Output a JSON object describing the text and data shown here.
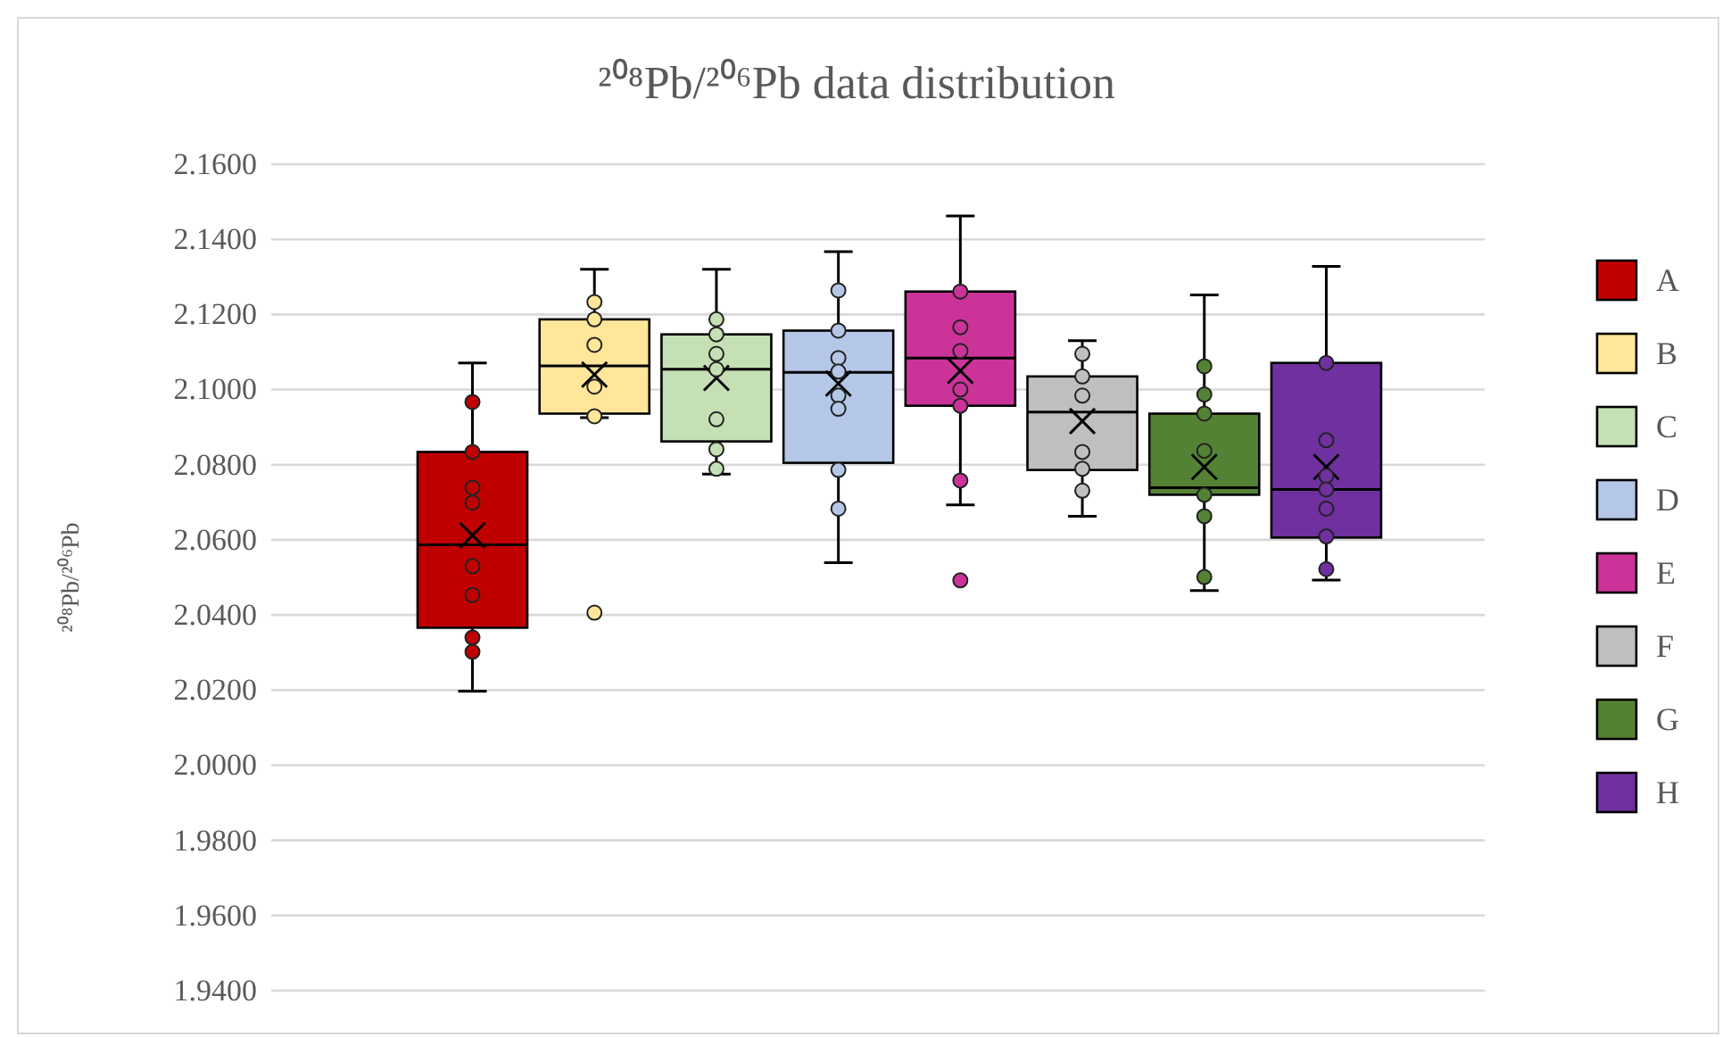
{
  "chart_data": {
    "type": "box",
    "title": "²⁰⁸Pb/²⁰⁶Pb data distribution",
    "ylabel": "²⁰⁸Pb/²⁰⁶Pb",
    "categories": [
      null
    ],
    "series": [
      {
        "name": "A",
        "color": "#c00000",
        "boxes": [
          {
            "low": 2.0197,
            "q1": 2.0366,
            "median": 2.0587,
            "q3": 2.0834,
            "high": 2.1071,
            "mean": 2.0612
          }
        ]
      },
      {
        "name": "B",
        "color": "#ffe699",
        "boxes": [
          {
            "low": 2.0925,
            "q1": 2.0936,
            "median": 2.1063,
            "q3": 2.1187,
            "high": 2.132,
            "mean": 2.104,
            "outliers": [
              2.0406
            ]
          }
        ]
      },
      {
        "name": "C",
        "color": "#c5e0b4",
        "boxes": [
          {
            "low": 2.0775,
            "q1": 2.0862,
            "median": 2.1054,
            "q3": 2.1147,
            "high": 2.132,
            "mean": 2.1031
          }
        ]
      },
      {
        "name": "D",
        "color": "#b4c7e7",
        "boxes": [
          {
            "low": 2.0539,
            "q1": 2.0805,
            "median": 2.1046,
            "q3": 2.1157,
            "high": 2.1367,
            "mean": 2.1016
          }
        ]
      },
      {
        "name": "E",
        "color": "#cc3399",
        "boxes": [
          {
            "low": 2.0693,
            "q1": 2.0957,
            "median": 2.1084,
            "q3": 2.1261,
            "high": 2.1462,
            "mean": 2.105,
            "outliers": [
              2.0492
            ]
          }
        ]
      },
      {
        "name": "F",
        "color": "#bfbfbf",
        "boxes": [
          {
            "low": 2.0663,
            "q1": 2.0786,
            "median": 2.094,
            "q3": 2.1035,
            "high": 2.113,
            "mean": 2.0916
          }
        ]
      },
      {
        "name": "G",
        "color": "#548235",
        "boxes": [
          {
            "low": 2.0465,
            "q1": 2.072,
            "median": 2.0739,
            "q3": 2.0936,
            "high": 2.1252,
            "mean": 2.0794
          }
        ]
      },
      {
        "name": "H",
        "color": "#7030a0",
        "boxes": [
          {
            "low": 2.0493,
            "q1": 2.0606,
            "median": 2.0734,
            "q3": 2.1071,
            "high": 2.1328,
            "mean": 2.0794
          }
        ]
      },
      {
        "type": "scatter",
        "color": "#c00000",
        "x": [
          null,
          null,
          null,
          null,
          null,
          null,
          null,
          null
        ],
        "values": [
          2.0967,
          2.0834,
          2.0739,
          2.0699,
          2.053,
          2.0453,
          2.034,
          2.0302
        ]
      },
      {
        "type": "scatter",
        "color": "#ffe699",
        "x": [
          null,
          null,
          null,
          null,
          null
        ],
        "values": [
          2.1233,
          2.1187,
          2.1119,
          2.1008,
          2.0929
        ]
      },
      {
        "type": "scatter",
        "color": "#c5e0b4",
        "x": [
          null,
          null,
          null,
          null,
          null,
          null,
          null
        ],
        "values": [
          2.1187,
          2.1147,
          2.1095,
          2.1054,
          2.0921,
          2.0841,
          2.0789
        ]
      },
      {
        "type": "scatter",
        "color": "#b4c7e7",
        "x": [
          null,
          null,
          null,
          null,
          null,
          null,
          null,
          null
        ],
        "values": [
          2.1264,
          2.1157,
          2.1084,
          2.1048,
          2.0984,
          2.0949,
          2.0786,
          2.0683
        ]
      },
      {
        "type": "scatter",
        "color": "#cc3399",
        "x": [
          null,
          null,
          null,
          null,
          null,
          null
        ],
        "values": [
          2.1261,
          2.1166,
          2.1103,
          2.1,
          2.0957,
          2.0758
        ]
      },
      {
        "type": "scatter",
        "color": "#bfbfbf",
        "x": [
          null,
          null,
          null,
          null,
          null,
          null
        ],
        "values": [
          2.1095,
          2.1035,
          2.0984,
          2.0834,
          2.0789,
          2.0731
        ]
      },
      {
        "type": "scatter",
        "color": "#548235",
        "x": [
          null,
          null,
          null,
          null,
          null,
          null,
          null
        ],
        "values": [
          2.1062,
          2.0987,
          2.0936,
          2.0837,
          2.072,
          2.0663,
          2.0501
        ]
      },
      {
        "type": "scatter",
        "color": "#7030a0",
        "x": [
          null,
          null,
          null,
          null,
          null,
          null,
          null
        ],
        "values": [
          2.1071,
          2.0865,
          2.077,
          2.0734,
          2.0683,
          2.0609,
          2.0522
        ]
      }
    ],
    "marker": "circle",
    "ylim": [
      1.94,
      2.16
    ],
    "yticks": [
      {
        "value": 1.94,
        "label": "1.9400"
      },
      {
        "value": 1.96,
        "label": "1.9600"
      },
      {
        "value": 1.98,
        "label": "1.9800"
      },
      {
        "value": 2.0,
        "label": "2.0000"
      },
      {
        "value": 2.02,
        "label": "2.0200"
      },
      {
        "value": 2.04,
        "label": "2.0400"
      },
      {
        "value": 2.06,
        "label": "2.0600"
      },
      {
        "value": 2.08,
        "label": "2.0800"
      },
      {
        "value": 2.1,
        "label": "2.1000"
      },
      {
        "value": 2.12,
        "label": "2.1200"
      },
      {
        "value": 2.14,
        "label": "2.1400"
      },
      {
        "value": 2.16,
        "label": "2.1600"
      }
    ],
    "grid": "y",
    "legend": "right",
    "tick_labels": "y"
  }
}
